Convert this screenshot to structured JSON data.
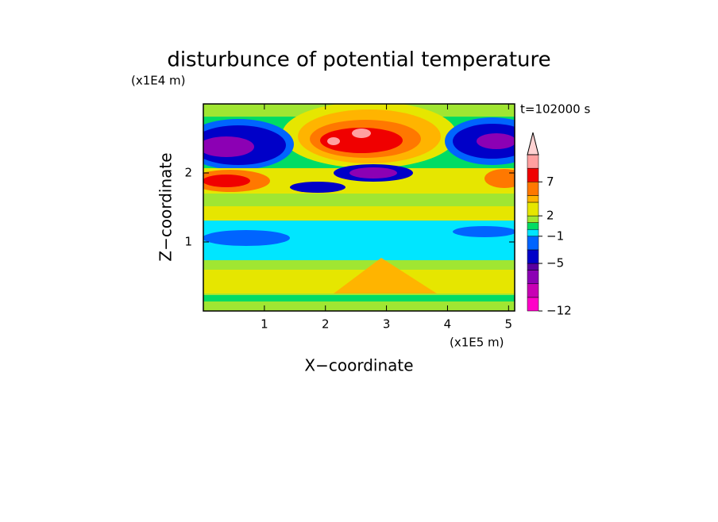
{
  "chart_data": {
    "type": "contour",
    "title": "disturbunce of potential temperature",
    "subtitle": "t=102000 s",
    "x_label": "X−coordinate",
    "y_label": "Z−coordinate",
    "x_unit": "(x1E5 m)",
    "y_unit": "(x1E4 m)",
    "xlim": [
      0,
      5.1
    ],
    "xticks": [
      1,
      2,
      3,
      4,
      5
    ],
    "ylim": [
      0,
      3
    ],
    "yticks": [
      1,
      2
    ],
    "colorbar": {
      "levels": [
        -12,
        -10,
        -8,
        -6,
        -5,
        -3,
        -1,
        0,
        1,
        2,
        4,
        5,
        7,
        9,
        11
      ],
      "colors": [
        "#ff00c8",
        "#c800b4",
        "#8c00b4",
        "#5a00a0",
        "#0000c8",
        "#0064ff",
        "#00e6ff",
        "#00dc64",
        "#a0e632",
        "#e6e600",
        "#ffb400",
        "#ff7800",
        "#f00000",
        "#ffa0a0"
      ],
      "over_color": "#ffd2d2",
      "ticks": [
        7,
        2,
        {
          "value": -1,
          "label": "−1"
        },
        {
          "value": -5,
          "label": "−5"
        },
        {
          "value": -12,
          "label": "−12"
        }
      ]
    }
  }
}
